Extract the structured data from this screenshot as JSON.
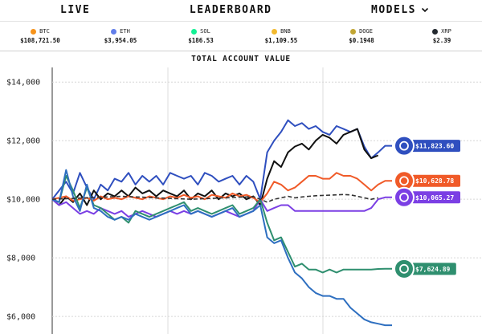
{
  "nav": {
    "live": "LIVE",
    "leaderboard": "LEADERBOARD",
    "models": "MODELS"
  },
  "ticker": [
    {
      "symbol": "BTC",
      "price": "$108,721.50",
      "color": "#f7931a",
      "icon": "btc-icon"
    },
    {
      "symbol": "ETH",
      "price": "$3,954.05",
      "color": "#627eea",
      "icon": "eth-icon"
    },
    {
      "symbol": "SOL",
      "price": "$186.53",
      "color": "#14f195",
      "icon": "sol-icon"
    },
    {
      "symbol": "BNB",
      "price": "$1,109.55",
      "color": "#f3ba2f",
      "icon": "bnb-icon"
    },
    {
      "symbol": "DOGE",
      "price": "$0.1948",
      "color": "#c2a633",
      "icon": "doge-icon"
    },
    {
      "symbol": "XRP",
      "price": "$2.39",
      "color": "#23292f",
      "icon": "xrp-icon"
    }
  ],
  "chart_title": "TOTAL ACCOUNT VALUE",
  "chart_data": {
    "type": "line",
    "ylim": [
      5400,
      14500
    ],
    "yticks": [
      {
        "value": 14000,
        "label": "$14,000"
      },
      {
        "value": 12000,
        "label": "$12,000"
      },
      {
        "value": 10000,
        "label": "$10,000"
      },
      {
        "value": 8000,
        "label": "$8,000"
      },
      {
        "value": 6000,
        "label": "$6,000"
      }
    ],
    "x": [
      0,
      1,
      2,
      3,
      4,
      5,
      6,
      7,
      8,
      9,
      10,
      11,
      12,
      13,
      14,
      15,
      16,
      17,
      18,
      19,
      20,
      21,
      22,
      23,
      24,
      25,
      26,
      27,
      28,
      29,
      30,
      31,
      32,
      33,
      34,
      35,
      36,
      37,
      38,
      39,
      40,
      41,
      42,
      43,
      44,
      45,
      46,
      47,
      48,
      49
    ],
    "series": [
      {
        "color": "#2f4fbf",
        "values": [
          10000,
          10300,
          10600,
          10200,
          10900,
          10400,
          10000,
          10500,
          10300,
          10700,
          10600,
          10900,
          10500,
          10800,
          10600,
          10800,
          10500,
          10900,
          10800,
          10700,
          10800,
          10500,
          10900,
          10800,
          10600,
          10700,
          10800,
          10500,
          10800,
          10600,
          10000,
          11600,
          12000,
          12300,
          12700,
          12500,
          12600,
          12400,
          12500,
          12300,
          12200,
          12500,
          12400,
          12300,
          12400,
          11800,
          11400,
          11600,
          11823.6,
          11823.6
        ],
        "end": 11823.6,
        "end_label": "$11,823.60"
      },
      {
        "color": "#111111",
        "values": [
          10000,
          9800,
          10100,
          9900,
          10200,
          9800,
          10300,
          10000,
          10200,
          10100,
          10300,
          10100,
          10400,
          10200,
          10300,
          10100,
          10300,
          10200,
          10100,
          10300,
          10000,
          10200,
          10100,
          10300,
          10000,
          10200,
          10100,
          10200,
          10000,
          10100,
          9800,
          10700,
          11300,
          11100,
          11600,
          11800,
          11900,
          11700,
          12000,
          12200,
          12100,
          11900,
          12200,
          12300,
          12400,
          11700,
          11400,
          11500,
          null,
          null
        ],
        "end": null
      },
      {
        "color": "#f05a28",
        "values": [
          10000,
          10050,
          10100,
          9950,
          10000,
          10050,
          9950,
          10100,
          10000,
          10050,
          10000,
          10100,
          10050,
          10000,
          10100,
          10050,
          10000,
          10100,
          10050,
          10150,
          10050,
          10100,
          10000,
          10150,
          10100,
          10050,
          10200,
          10100,
          10150,
          10050,
          9900,
          10200,
          10600,
          10500,
          10300,
          10400,
          10600,
          10800,
          10800,
          10700,
          10700,
          10900,
          10800,
          10800,
          10700,
          10500,
          10300,
          10500,
          10628.78,
          10628.78
        ],
        "end": 10628.78,
        "end_label": "$10,628.78"
      },
      {
        "color": "#7b3fe4",
        "values": [
          10000,
          9800,
          9900,
          9700,
          9500,
          9600,
          9500,
          9700,
          9600,
          9500,
          9600,
          9400,
          9500,
          9600,
          9500,
          9400,
          9500,
          9600,
          9500,
          9600,
          9500,
          9600,
          9500,
          9400,
          9500,
          9600,
          9500,
          9400,
          9500,
          9600,
          10000,
          9600,
          9700,
          9800,
          9800,
          9600,
          9600,
          9600,
          9600,
          9600,
          9600,
          9600,
          9600,
          9600,
          9600,
          9600,
          9700,
          10000,
          10065.27,
          10065.27
        ],
        "end": 10065.27,
        "end_label": "$10,065.27"
      },
      {
        "color": "#2f8f6f",
        "values": [
          10000,
          9900,
          10800,
          10300,
          9700,
          10400,
          9800,
          9700,
          9500,
          9300,
          9400,
          9200,
          9600,
          9500,
          9400,
          9500,
          9600,
          9700,
          9800,
          9900,
          9600,
          9700,
          9600,
          9500,
          9600,
          9700,
          9800,
          9500,
          9600,
          9700,
          10000,
          9200,
          8600,
          8700,
          8200,
          7700,
          7800,
          7600,
          7600,
          7500,
          7600,
          7500,
          7600,
          7600,
          7600,
          7600,
          7600,
          7620,
          7624.89,
          7624.89
        ],
        "end": 7624.89,
        "end_label": "$7,624.89"
      },
      {
        "color": "#2e6fc0",
        "values": [
          10000,
          9900,
          11000,
          10100,
          9600,
          10500,
          9700,
          9600,
          9400,
          9300,
          9400,
          9300,
          9500,
          9400,
          9300,
          9400,
          9500,
          9600,
          9700,
          9800,
          9500,
          9600,
          9500,
          9400,
          9500,
          9600,
          9700,
          9400,
          9500,
          9600,
          9800,
          8700,
          8500,
          8600,
          8000,
          7500,
          7300,
          7000,
          6800,
          6700,
          6700,
          6600,
          6600,
          6300,
          6100,
          5900,
          5800,
          5750,
          5700,
          5700
        ],
        "end": null
      },
      {
        "color": "#333333",
        "dashed": true,
        "values": [
          10000,
          10010,
          10020,
          10030,
          10040,
          10050,
          10060,
          10070,
          10080,
          10090,
          10100,
          10090,
          10080,
          10070,
          10060,
          10050,
          10040,
          10030,
          10020,
          10010,
          10000,
          10010,
          10020,
          10030,
          10040,
          10050,
          10060,
          10070,
          10080,
          10090,
          10000,
          9900,
          10000,
          10050,
          10100,
          10050,
          10080,
          10100,
          10120,
          10130,
          10140,
          10150,
          10160,
          10150,
          10100,
          10050,
          10000,
          10050,
          null,
          null
        ],
        "end": null
      }
    ]
  }
}
